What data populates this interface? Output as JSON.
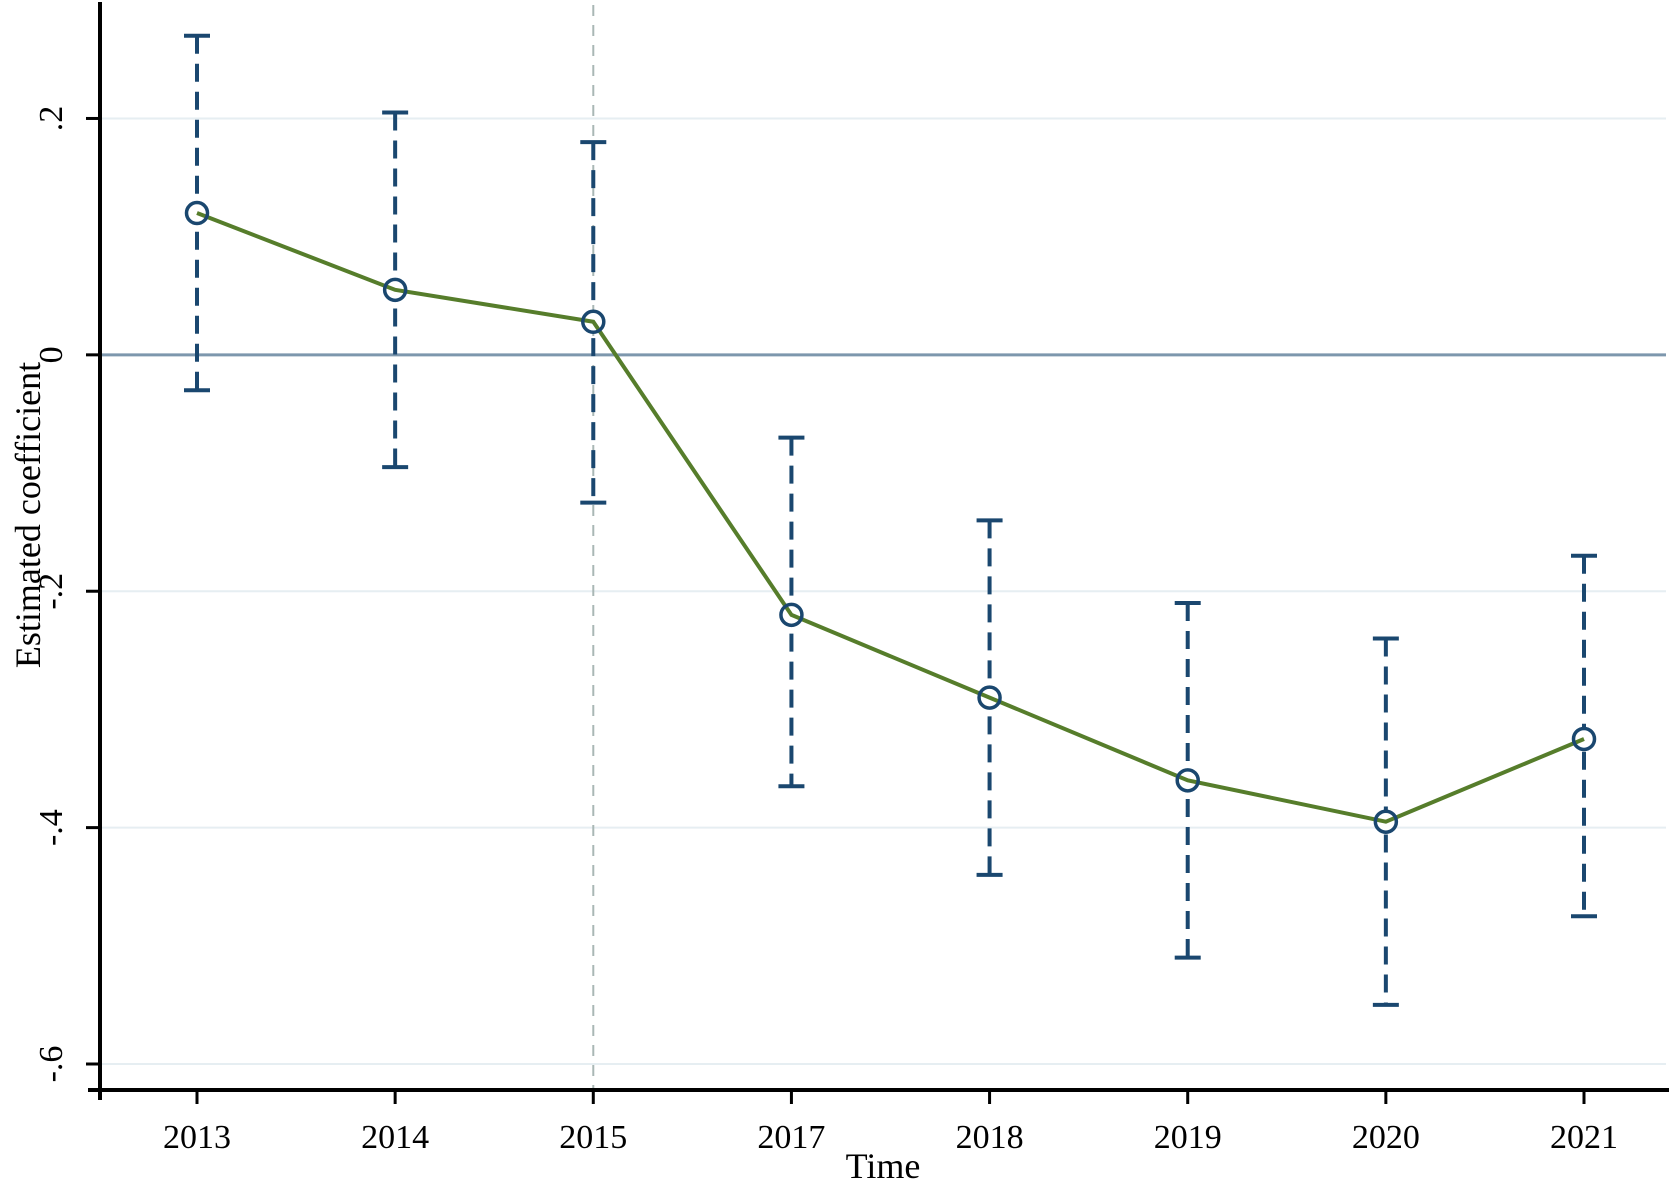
{
  "chart_data": {
    "type": "line",
    "title": "",
    "xlabel": "Time",
    "ylabel": "Estimated coefficient",
    "categories": [
      "2013",
      "2014",
      "2015",
      "2017",
      "2018",
      "2019",
      "2020",
      "2021"
    ],
    "series": [
      {
        "name": "Estimated coefficient",
        "marker": "hollow-circle",
        "line_style": "solid",
        "values": [
          0.12,
          0.055,
          0.028,
          -0.22,
          -0.29,
          -0.36,
          -0.395,
          -0.325
        ],
        "ci_low": [
          -0.03,
          -0.095,
          -0.125,
          -0.365,
          -0.44,
          -0.51,
          -0.55,
          -0.475
        ],
        "ci_high": [
          0.27,
          0.205,
          0.18,
          -0.07,
          -0.14,
          -0.21,
          -0.24,
          -0.17
        ],
        "ci_style": "dashed-with-caps"
      }
    ],
    "y_ticks": [
      0.2,
      0,
      -0.2,
      -0.4,
      -0.6
    ],
    "y_tick_labels": [
      ".2",
      "0",
      "-.2",
      "-.4",
      "-.6"
    ],
    "ylim": [
      -0.622,
      0.296
    ],
    "zero_line": true,
    "reference_line_x": "2015",
    "grid": "horizontal-light",
    "legend": "none"
  },
  "colors": {
    "series_line": "#567d2b",
    "marker_and_ci": "#1a476f",
    "zero_line": "#7d97ad",
    "gridline": "#e6eef2",
    "reference_line": "#a9b7b5",
    "axis": "#000000",
    "background": "#ffffff"
  }
}
